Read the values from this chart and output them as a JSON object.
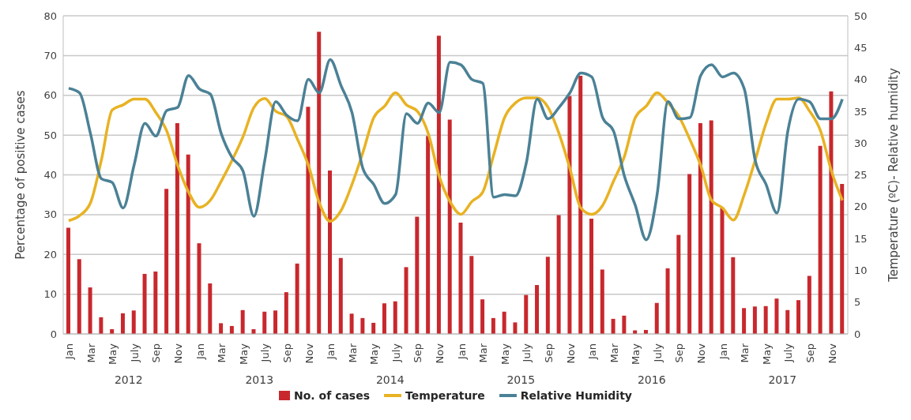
{
  "chart_data": {
    "type": "bar",
    "categories": [
      "Jan",
      null,
      "Mar",
      null,
      "May",
      null,
      "July",
      null,
      "Sep",
      null,
      "Nov",
      null,
      "Jan",
      null,
      "Mar",
      null,
      "May",
      null,
      "July",
      null,
      "Sep",
      null,
      "Nov",
      null,
      "Jan",
      null,
      "Mar",
      null,
      "May",
      null,
      "July",
      null,
      "Sep",
      null,
      "Nov",
      null,
      "Jan",
      null,
      "Mar",
      null,
      "May",
      null,
      "July",
      null,
      "Sep",
      null,
      "Nov",
      null,
      "Jan",
      null,
      "Mar",
      null,
      "May",
      null,
      "July",
      null,
      "Sep",
      null,
      "Nov",
      null,
      "Jan",
      null,
      "Mar",
      null,
      "May",
      null,
      "July",
      null,
      "Sep",
      null,
      "Nov",
      null
    ],
    "series": [
      {
        "name": "No. of cases",
        "color": "#c8282d",
        "values": [
          26.7,
          18.8,
          11.7,
          4.2,
          1.2,
          5.2,
          5.9,
          15.1,
          15.7,
          36.5,
          53,
          45.1,
          22.8,
          12.7,
          2.7,
          2,
          6,
          1.2,
          5.6,
          5.9,
          10.5,
          17.7,
          57.1,
          76,
          41.1,
          19.1,
          5.1,
          4,
          2.8,
          7.7,
          8.2,
          16.8,
          29.5,
          49.8,
          75,
          53.9,
          28,
          19.6,
          8.7,
          4,
          5.6,
          2.9,
          9.8,
          12.3,
          19.4,
          29.9,
          59.8,
          64.9,
          29,
          16.2,
          3.8,
          4.6,
          0.9,
          1,
          7.8,
          16.5,
          24.9,
          40.2,
          53,
          53.7,
          31.7,
          19.3,
          6.5,
          6.9,
          7,
          8.9,
          6,
          8.5,
          14.6,
          47.3,
          61,
          37.7
        ]
      },
      {
        "name": "Temperature",
        "type": "line",
        "axis": "y2",
        "color": "#e8b223",
        "values": [
          17.8,
          18.6,
          20.6,
          27.3,
          35.2,
          36,
          36.9,
          36.9,
          34.8,
          31.9,
          26.5,
          22.3,
          19.9,
          21,
          24,
          27.3,
          31,
          35.6,
          37,
          35,
          34.2,
          30.6,
          26.5,
          20.6,
          17.7,
          19.4,
          23.5,
          28.5,
          34,
          35.8,
          37.9,
          36,
          35,
          31.5,
          24.8,
          20.8,
          18.8,
          20.8,
          22.3,
          28.1,
          34,
          36.3,
          37.1,
          37.1,
          35.6,
          31.5,
          26,
          19.8,
          18.8,
          20.2,
          24,
          27.9,
          34,
          35.8,
          37.9,
          36.3,
          34.2,
          30.6,
          26.5,
          21,
          19.8,
          17.9,
          21.9,
          27.3,
          33.1,
          36.9,
          36.9,
          37.1,
          35,
          31.9,
          25.6,
          21
        ]
      },
      {
        "name": "Relative Humidity",
        "type": "line",
        "axis": "y2",
        "color": "#4b8196",
        "values": [
          38.6,
          37.9,
          31.5,
          24.4,
          23.8,
          19.8,
          26.5,
          33.1,
          31.1,
          35.1,
          35.6,
          40.6,
          38.5,
          37.7,
          31.5,
          27.7,
          25.6,
          18.5,
          27.3,
          36.5,
          34.4,
          33.5,
          40,
          37.9,
          43.1,
          39,
          34.8,
          26,
          23.5,
          20.5,
          21.9,
          34.6,
          33.1,
          36.3,
          34.8,
          42.7,
          42.3,
          40,
          39.4,
          21.5,
          21.9,
          21.7,
          26.9,
          36.9,
          33.8,
          35.6,
          37.9,
          41,
          40.4,
          34,
          31.9,
          24.8,
          20.2,
          14.8,
          21.9,
          36.5,
          33.8,
          34,
          40.6,
          42.3,
          40.4,
          41,
          38.5,
          27.3,
          23.5,
          19,
          31.9,
          36.9,
          36.5,
          33.8,
          33.8,
          36.9
        ]
      }
    ],
    "ylabel": "Percentage of positive cases",
    "y2label": "Temperature (ºC)- Relative humidity",
    "ylim": [
      0,
      80
    ],
    "yticks": [
      0,
      10,
      20,
      30,
      40,
      50,
      60,
      70,
      80
    ],
    "y2lim": [
      0,
      50
    ],
    "y2ticks": [
      0,
      5,
      10,
      15,
      20,
      25,
      30,
      35,
      40,
      45,
      50
    ],
    "annotations": [
      "2012",
      "2013",
      "2014",
      "2015",
      "2016",
      "2017"
    ],
    "grid": "y",
    "legend": "bottom",
    "marker": "none",
    "line_style": "solid"
  }
}
